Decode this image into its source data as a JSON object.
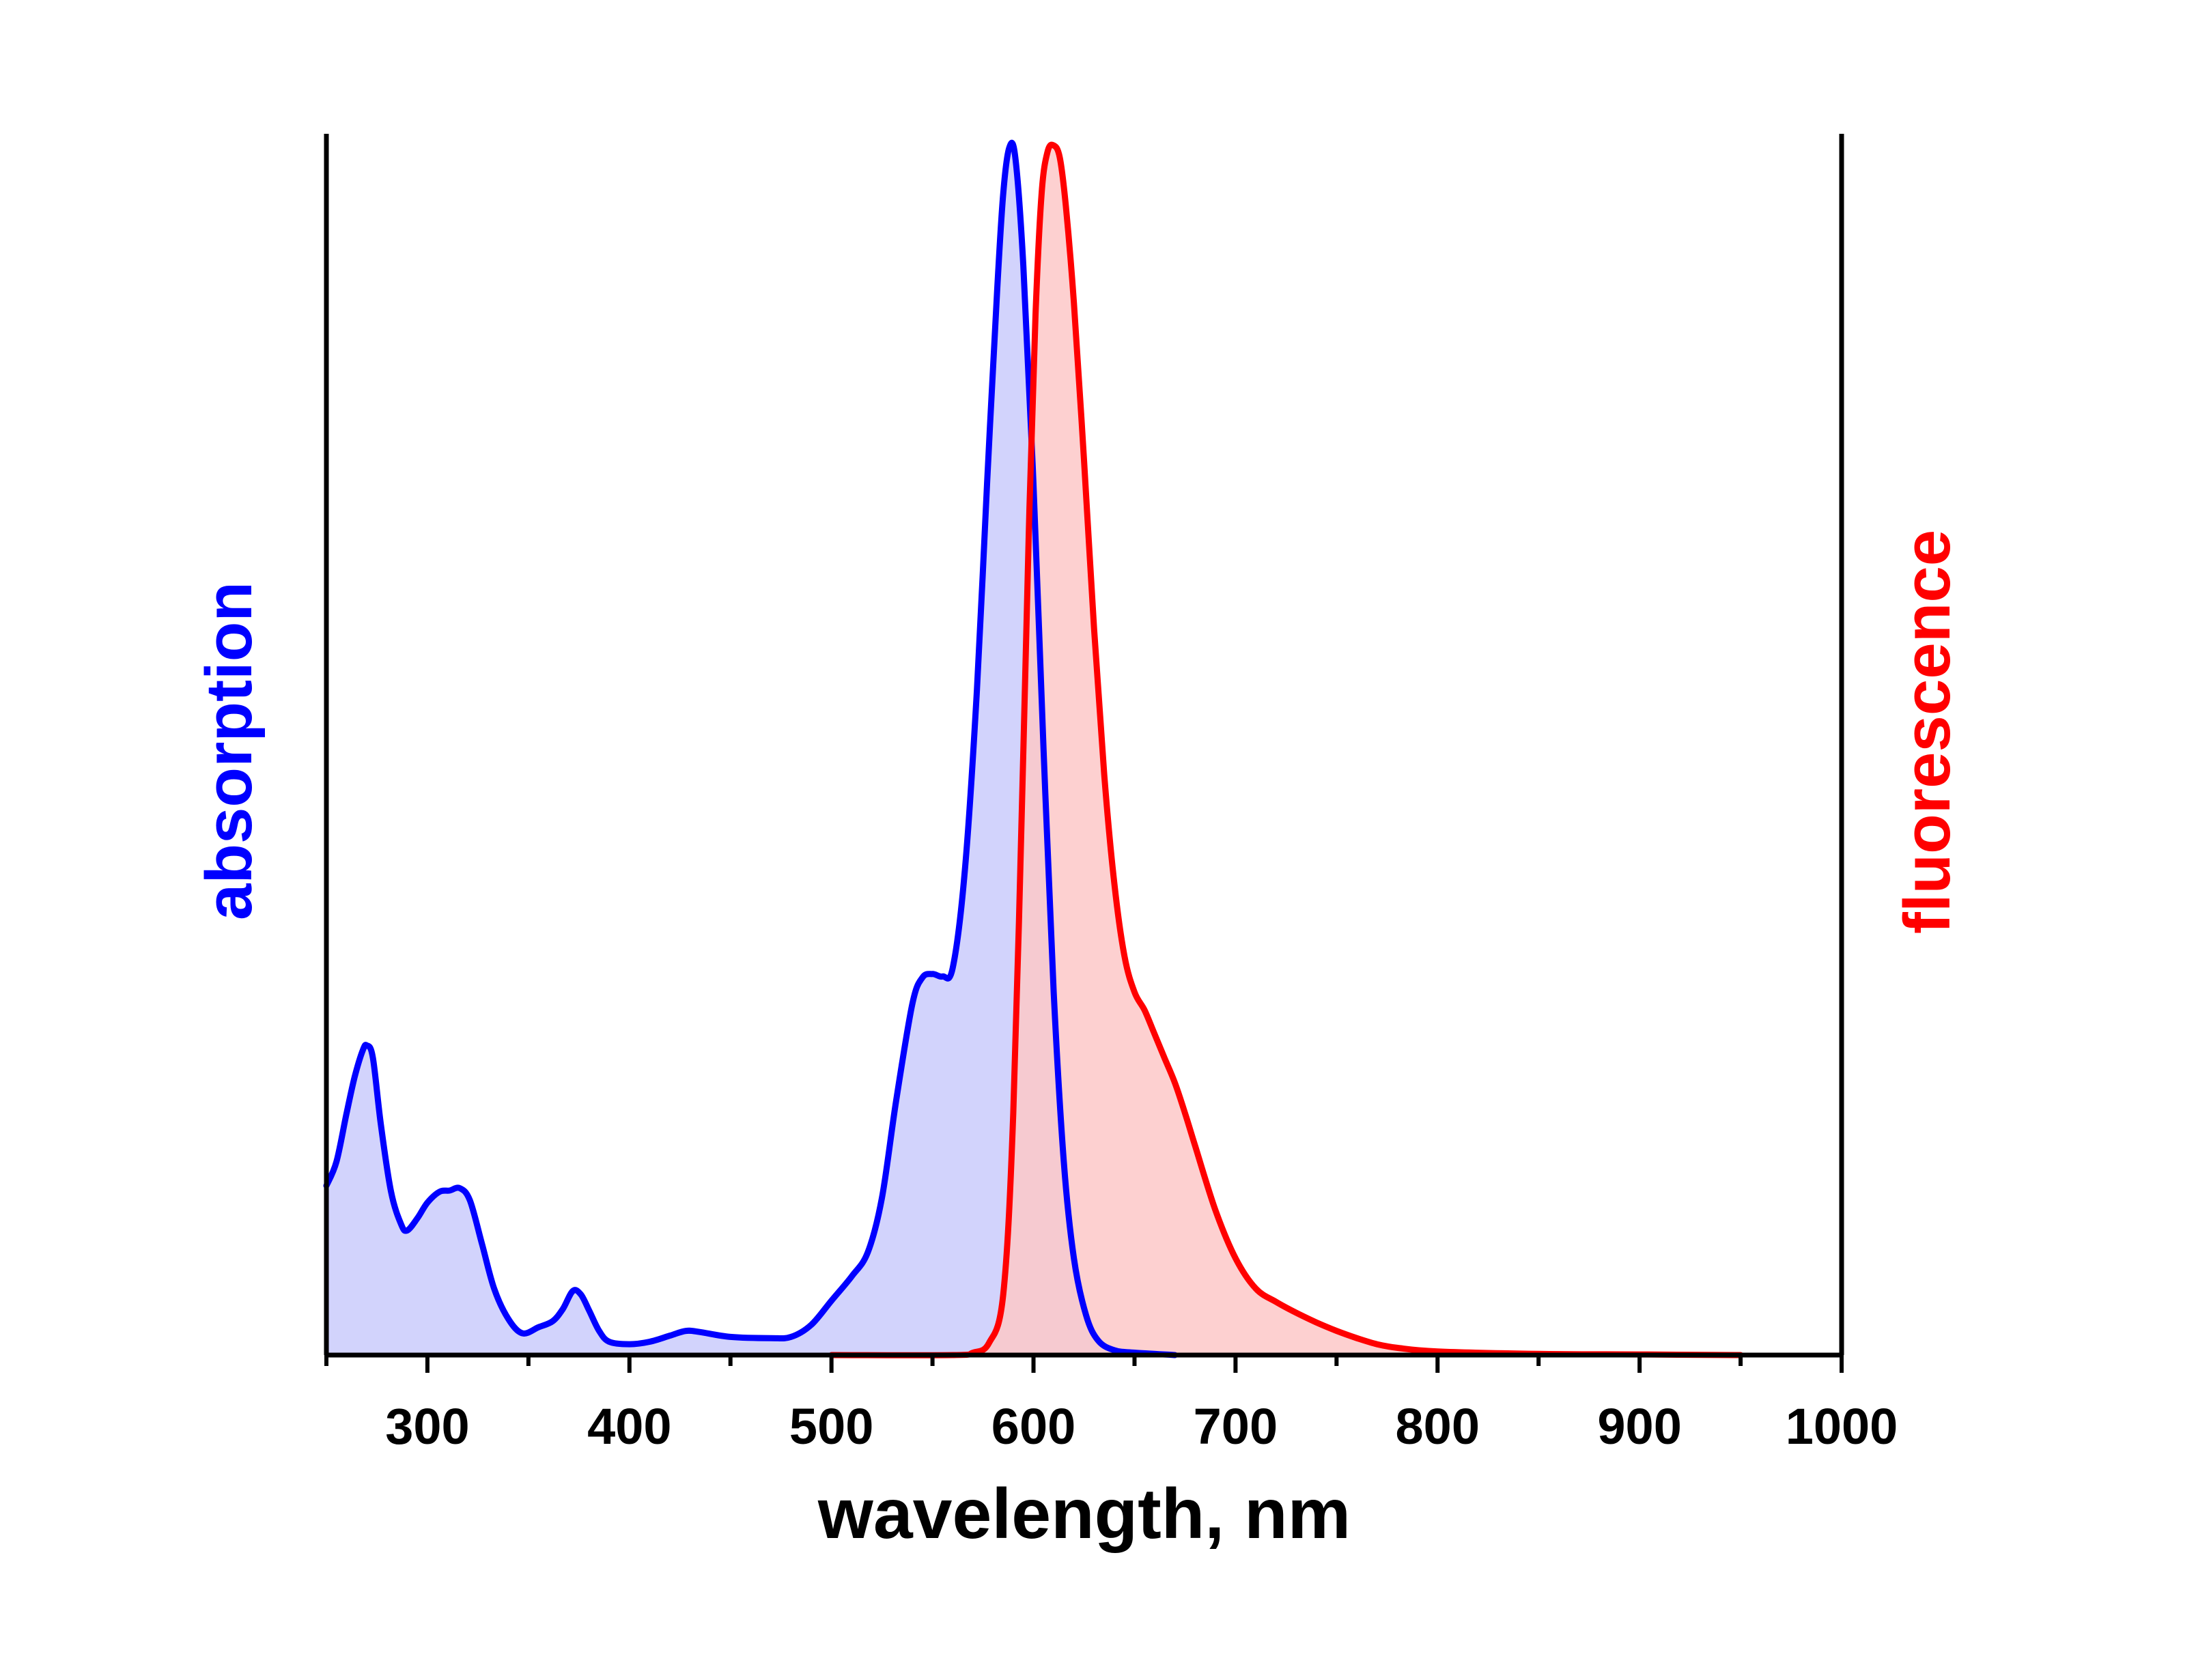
{
  "chart_data": {
    "type": "area",
    "title": "",
    "xlabel": "wavelength, nm",
    "ylabel_left": "absorption",
    "ylabel_right": "fluorescence",
    "xlim": [
      250,
      1000
    ],
    "ylim": [
      0,
      1
    ],
    "x_ticks": [
      300,
      400,
      500,
      600,
      700,
      800,
      900,
      1000
    ],
    "y_tick_labels_shown": false,
    "grid": false,
    "series": [
      {
        "label": "absorption",
        "color": "#0000ff",
        "fill": "#cacbfb",
        "points": [
          [
            250,
            0.14
          ],
          [
            255,
            0.16
          ],
          [
            260,
            0.2
          ],
          [
            264,
            0.23
          ],
          [
            268,
            0.252
          ],
          [
            270,
            0.256
          ],
          [
            273,
            0.246
          ],
          [
            277,
            0.19
          ],
          [
            282,
            0.135
          ],
          [
            287,
            0.108
          ],
          [
            290,
            0.103
          ],
          [
            295,
            0.113
          ],
          [
            300,
            0.126
          ],
          [
            306,
            0.135
          ],
          [
            311,
            0.136
          ],
          [
            316,
            0.138
          ],
          [
            321,
            0.128
          ],
          [
            327,
            0.092
          ],
          [
            333,
            0.055
          ],
          [
            340,
            0.03
          ],
          [
            347,
            0.018
          ],
          [
            355,
            0.023
          ],
          [
            362,
            0.028
          ],
          [
            367,
            0.038
          ],
          [
            372,
            0.053
          ],
          [
            376,
            0.05
          ],
          [
            380,
            0.037
          ],
          [
            385,
            0.02
          ],
          [
            390,
            0.011
          ],
          [
            400,
            0.009
          ],
          [
            410,
            0.011
          ],
          [
            420,
            0.016
          ],
          [
            428,
            0.02
          ],
          [
            435,
            0.019
          ],
          [
            450,
            0.015
          ],
          [
            470,
            0.014
          ],
          [
            480,
            0.015
          ],
          [
            490,
            0.025
          ],
          [
            500,
            0.045
          ],
          [
            510,
            0.065
          ],
          [
            518,
            0.085
          ],
          [
            525,
            0.13
          ],
          [
            532,
            0.21
          ],
          [
            540,
            0.29
          ],
          [
            545,
            0.312
          ],
          [
            550,
            0.315
          ],
          [
            555,
            0.313
          ],
          [
            560,
            0.32
          ],
          [
            566,
            0.4
          ],
          [
            572,
            0.55
          ],
          [
            577,
            0.72
          ],
          [
            582,
            0.88
          ],
          [
            585,
            0.96
          ],
          [
            588,
            0.998
          ],
          [
            591,
            0.99
          ],
          [
            595,
            0.9
          ],
          [
            600,
            0.72
          ],
          [
            605,
            0.5
          ],
          [
            610,
            0.3
          ],
          [
            615,
            0.16
          ],
          [
            620,
            0.08
          ],
          [
            626,
            0.033
          ],
          [
            632,
            0.012
          ],
          [
            640,
            0.004
          ],
          [
            650,
            0.002
          ],
          [
            670,
            0
          ]
        ]
      },
      {
        "label": "fluorescence",
        "color": "#ff0000",
        "fill": "#fdc8c8",
        "points": [
          [
            500,
            0
          ],
          [
            560,
            0
          ],
          [
            570,
            0.002
          ],
          [
            578,
            0.01
          ],
          [
            585,
            0.05
          ],
          [
            590,
            0.2
          ],
          [
            595,
            0.5
          ],
          [
            598,
            0.7
          ],
          [
            601,
            0.86
          ],
          [
            604,
            0.96
          ],
          [
            607,
            0.995
          ],
          [
            610,
            1.0
          ],
          [
            613,
            0.99
          ],
          [
            616,
            0.95
          ],
          [
            620,
            0.87
          ],
          [
            625,
            0.74
          ],
          [
            630,
            0.6
          ],
          [
            635,
            0.48
          ],
          [
            640,
            0.39
          ],
          [
            645,
            0.33
          ],
          [
            650,
            0.3
          ],
          [
            655,
            0.285
          ],
          [
            660,
            0.265
          ],
          [
            665,
            0.245
          ],
          [
            670,
            0.225
          ],
          [
            675,
            0.2
          ],
          [
            680,
            0.173
          ],
          [
            690,
            0.12
          ],
          [
            700,
            0.08
          ],
          [
            710,
            0.055
          ],
          [
            720,
            0.044
          ],
          [
            730,
            0.035
          ],
          [
            740,
            0.027
          ],
          [
            750,
            0.02
          ],
          [
            760,
            0.014
          ],
          [
            770,
            0.009
          ],
          [
            780,
            0.006
          ],
          [
            800,
            0.003
          ],
          [
            850,
            0.001
          ],
          [
            900,
            0.0005
          ],
          [
            950,
            0
          ]
        ]
      }
    ],
    "axis_color": "#000000"
  }
}
